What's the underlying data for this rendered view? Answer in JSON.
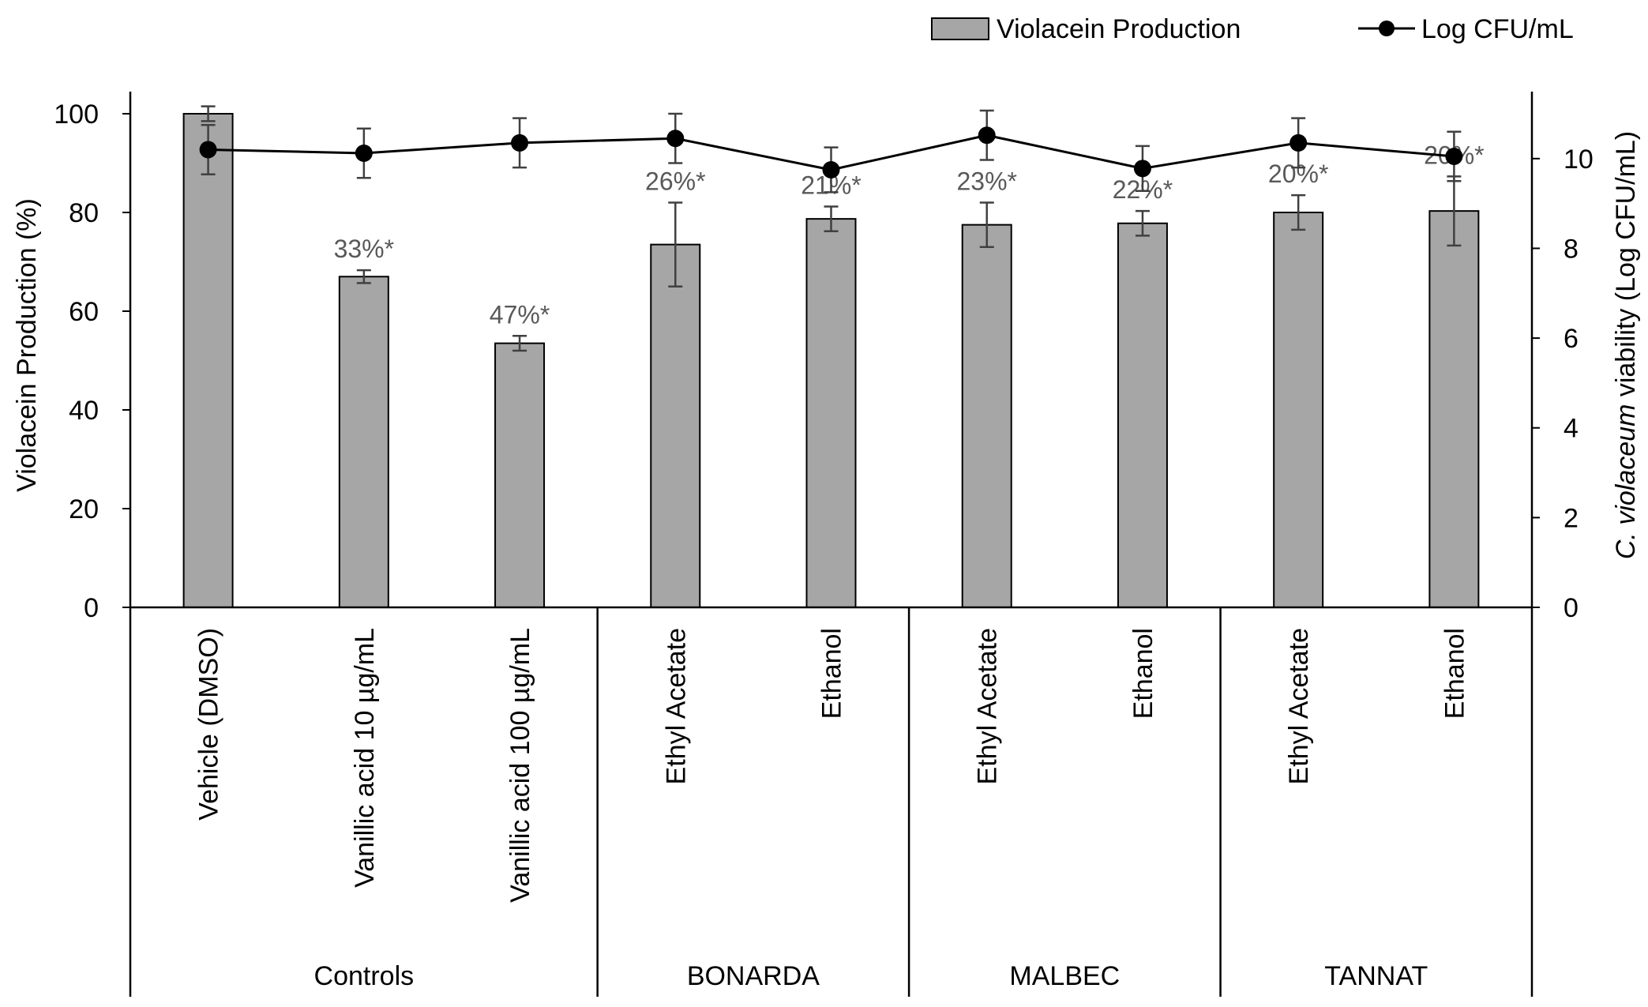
{
  "chart_data": {
    "type": "bar",
    "title": "",
    "legend": {
      "position": "top-right",
      "bar_label": "Violacein Production",
      "line_label": "Log CFU/mL"
    },
    "colors": {
      "bar_fill": "#a6a6a6",
      "bar_stroke": "#000000",
      "line": "#000000",
      "error": "#404040",
      "annotation": "#595959"
    },
    "y_left": {
      "label": "Violacein Production (%)",
      "lim": [
        0,
        100
      ],
      "ticks": [
        "0",
        "20",
        "40",
        "60",
        "80",
        "100"
      ]
    },
    "y_right": {
      "label_italic": "C. violaceum",
      "label_rest": " viability (Log CFU/mL)",
      "lim": [
        0,
        11
      ],
      "ticks": [
        "0",
        "2",
        "4",
        "6",
        "8",
        "10"
      ]
    },
    "categories": [
      "Vehicle (DMSO)",
      "Vanillic acid 10 µg/mL",
      "Vanillic acid 100 µg/mL",
      "Ethyl Acetate",
      "Ethanol",
      "Ethyl Acetate",
      "Ethanol",
      "Ethyl Acetate",
      "Ethanol"
    ],
    "groups": [
      {
        "label": "Controls",
        "start": 0,
        "end": 2
      },
      {
        "label": "BONARDA",
        "start": 3,
        "end": 4
      },
      {
        "label": "MALBEC",
        "start": 5,
        "end": 6
      },
      {
        "label": "TANNAT",
        "start": 7,
        "end": 8
      }
    ],
    "series": [
      {
        "name": "Violacein Production",
        "type": "bar",
        "axis": "left",
        "values": [
          100,
          67,
          53.5,
          73.5,
          78.7,
          77.5,
          77.8,
          80,
          80.3
        ],
        "errors": [
          1.5,
          1.3,
          1.5,
          8.5,
          2.5,
          4.5,
          2.5,
          3.5,
          7
        ],
        "annotations": [
          "",
          "33%*",
          "47%*",
          "26%*",
          "21%*",
          "23%*",
          "22%*",
          "20%*",
          "20%*"
        ]
      },
      {
        "name": "Log CFU/mL",
        "type": "line",
        "axis": "right",
        "values": [
          10.2,
          10.12,
          10.35,
          10.45,
          9.75,
          10.52,
          9.78,
          10.35,
          10.05
        ],
        "errors": [
          0.55,
          0.55,
          0.55,
          0.55,
          0.5,
          0.55,
          0.5,
          0.55,
          0.55
        ]
      }
    ]
  }
}
